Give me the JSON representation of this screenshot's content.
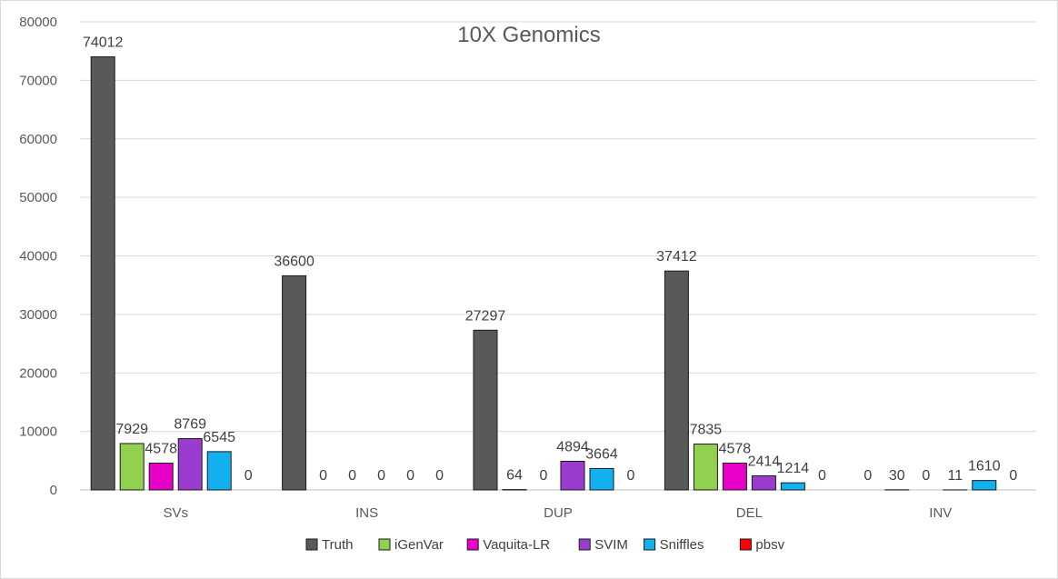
{
  "chart_data": {
    "type": "bar",
    "title": "10X Genomics",
    "xlabel": "",
    "ylabel": "",
    "categories": [
      "SVs",
      "INS",
      "DUP",
      "DEL",
      "INV"
    ],
    "ylim": [
      0,
      80000
    ],
    "yticks": [
      0,
      10000,
      20000,
      30000,
      40000,
      50000,
      60000,
      70000,
      80000
    ],
    "grid": true,
    "legend_position": "bottom",
    "series": [
      {
        "name": "Truth",
        "color": "#595959",
        "values": [
          74012,
          36600,
          27297,
          37412,
          0
        ]
      },
      {
        "name": "iGenVar",
        "color": "#92d050",
        "values": [
          7929,
          0,
          64,
          7835,
          30
        ]
      },
      {
        "name": "Vaquita-LR",
        "color": "#e600c8",
        "values": [
          4578,
          0,
          0,
          4578,
          0
        ]
      },
      {
        "name": "SVIM",
        "color": "#9a3cd0",
        "values": [
          8769,
          0,
          4894,
          2414,
          11
        ]
      },
      {
        "name": "Sniffles",
        "color": "#12b0ee",
        "values": [
          6545,
          0,
          3664,
          1214,
          1610
        ]
      },
      {
        "name": "pbsv",
        "color": "#ff0000",
        "values": [
          0,
          0,
          0,
          0,
          0
        ]
      }
    ]
  }
}
